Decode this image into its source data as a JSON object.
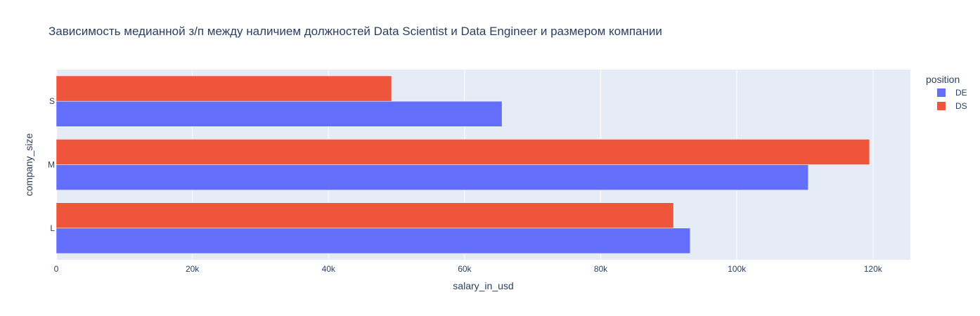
{
  "chart_data": {
    "type": "bar",
    "orientation": "horizontal",
    "barmode": "group",
    "title": "Зависимость медианной з/п между наличием должностей Data Scientist и Data Engineer и размером компании",
    "xlabel": "salary_in_usd",
    "ylabel": "company_size",
    "categories": [
      "L",
      "M",
      "S"
    ],
    "xlim": [
      0,
      125500
    ],
    "xticks": [
      0,
      20000,
      40000,
      60000,
      80000,
      100000,
      120000
    ],
    "xtick_labels": [
      "0",
      "20k",
      "40k",
      "60k",
      "80k",
      "100k",
      "120k"
    ],
    "grid": true,
    "legend": {
      "title": "position",
      "placement": "top-right"
    },
    "series": [
      {
        "name": "DE",
        "color": "#636efa",
        "values": [
          93150,
          110500,
          65500
        ]
      },
      {
        "name": "DS",
        "color": "#ef553b",
        "values": [
          90700,
          119500,
          49270
        ]
      }
    ],
    "colors": {
      "plot_bg": "#e5ecf6",
      "grid": "#ffffff",
      "text": "#2a3f5f"
    }
  }
}
